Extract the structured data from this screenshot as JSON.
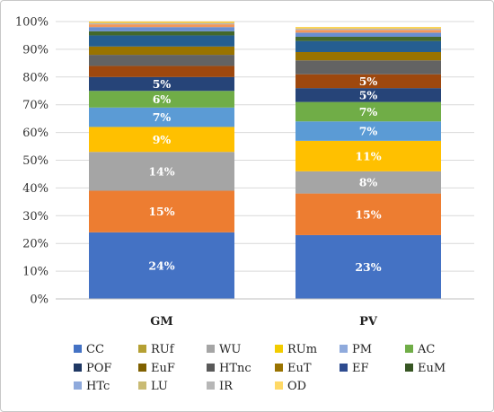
{
  "chart_data": {
    "type": "bar",
    "stacked": true,
    "percent": true,
    "categories": [
      "GM",
      "PV"
    ],
    "ylim": [
      0,
      100
    ],
    "yticks": [
      "0%",
      "10%",
      "20%",
      "30%",
      "40%",
      "50%",
      "60%",
      "70%",
      "80%",
      "90%",
      "100%"
    ],
    "legend": "bottom",
    "series": [
      {
        "name": "CC",
        "color": "#4472C4",
        "values": [
          24,
          23
        ],
        "labels": [
          "24%",
          "23%"
        ]
      },
      {
        "name": "RUf",
        "color": "#ED7D31",
        "values": [
          15,
          15
        ],
        "labels": [
          "15%",
          "15%"
        ]
      },
      {
        "name": "WU",
        "color": "#A5A5A5",
        "values": [
          14,
          8
        ],
        "labels": [
          "14%",
          "8%"
        ]
      },
      {
        "name": "RUm",
        "color": "#FFC000",
        "values": [
          9,
          11
        ],
        "labels": [
          "9%",
          "11%"
        ]
      },
      {
        "name": "PM",
        "color": "#5B9BD5",
        "values": [
          7,
          7
        ],
        "labels": [
          "7%",
          "7%"
        ]
      },
      {
        "name": "AC",
        "color": "#70AD47",
        "values": [
          6,
          7
        ],
        "labels": [
          "6%",
          "7%"
        ]
      },
      {
        "name": "POF",
        "color": "#264478",
        "values": [
          5,
          5
        ],
        "labels": [
          "5%",
          "5%"
        ]
      },
      {
        "name": "EuF",
        "color": "#9E480E",
        "values": [
          4,
          5
        ],
        "labels": [
          "",
          "5%"
        ]
      },
      {
        "name": "HTnc",
        "color": "#636363",
        "values": [
          4,
          5
        ],
        "labels": [
          "",
          ""
        ]
      },
      {
        "name": "EuT",
        "color": "#997300",
        "values": [
          3,
          3
        ],
        "labels": [
          "",
          ""
        ]
      },
      {
        "name": "EF",
        "color": "#255E91",
        "values": [
          4,
          4
        ],
        "labels": [
          "",
          ""
        ]
      },
      {
        "name": "EuM",
        "color": "#43682B",
        "values": [
          1.5,
          1.5
        ],
        "labels": [
          "",
          ""
        ]
      },
      {
        "name": "HTc",
        "color": "#698ED0",
        "values": [
          1.5,
          1.5
        ],
        "labels": [
          "",
          ""
        ]
      },
      {
        "name": "LU",
        "color": "#F1975A",
        "values": [
          1,
          1
        ],
        "labels": [
          "",
          ""
        ]
      },
      {
        "name": "IR",
        "color": "#B7B7B7",
        "values": [
          0.5,
          0.5
        ],
        "labels": [
          "",
          ""
        ]
      },
      {
        "name": "OD",
        "color": "#FFCD33",
        "values": [
          0.5,
          0.5
        ],
        "labels": [
          "",
          ""
        ]
      }
    ],
    "legend_items": [
      {
        "name": "CC",
        "color": "#4472C4"
      },
      {
        "name": "RUf",
        "color": "#B5A033"
      },
      {
        "name": "WU",
        "color": "#A5A5A5"
      },
      {
        "name": "RUm",
        "color": "#F2CC00"
      },
      {
        "name": "PM",
        "color": "#8FAADC"
      },
      {
        "name": "AC",
        "color": "#70AD47"
      },
      {
        "name": "POF",
        "color": "#1F3864"
      },
      {
        "name": "EuF",
        "color": "#7F6000"
      },
      {
        "name": "HTnc",
        "color": "#595959"
      },
      {
        "name": "EuT",
        "color": "#997300"
      },
      {
        "name": "EF",
        "color": "#2E4B8F"
      },
      {
        "name": "EuM",
        "color": "#375623"
      },
      {
        "name": "HTc",
        "color": "#8FAADC"
      },
      {
        "name": "LU",
        "color": "#C9BB74"
      },
      {
        "name": "IR",
        "color": "#B7B7B7"
      },
      {
        "name": "OD",
        "color": "#FFD966"
      }
    ]
  }
}
